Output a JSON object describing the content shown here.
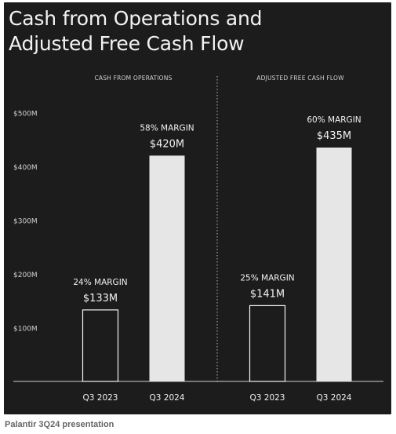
{
  "title_line1": "Cash from Operations and",
  "title_line2": "Adjusted Free Cash Flow",
  "caption": "Palantir 3Q24 presentation",
  "colors": {
    "background": "#1c1c1c",
    "text": "#f2f2f2",
    "bar_fill": "#e6e6e6",
    "bar_outline": "#f2f2f2",
    "axis_text": "#d0d0d0"
  },
  "chart_data": [
    {
      "type": "bar",
      "panel_label": "CASH FROM OPERATIONS",
      "categories": [
        "Q3 2023",
        "Q3 2024"
      ],
      "values": [
        133,
        420
      ],
      "value_labels": [
        "$133M",
        "$420M"
      ],
      "margin_labels": [
        "24% MARGIN",
        "58% MARGIN"
      ],
      "bar_styles": [
        "outline",
        "filled"
      ],
      "unit": "$M",
      "ylim": [
        0,
        500
      ],
      "yticks": [
        100,
        200,
        300,
        400,
        500
      ],
      "ytick_labels": [
        "$100M",
        "$200M",
        "$300M",
        "$400M",
        "$500M"
      ],
      "grid": false
    },
    {
      "type": "bar",
      "panel_label": "ADJUSTED FREE CASH FLOW",
      "categories": [
        "Q3 2023",
        "Q3 2024"
      ],
      "values": [
        141,
        435
      ],
      "value_labels": [
        "$141M",
        "$435M"
      ],
      "margin_labels": [
        "25% MARGIN",
        "60% MARGIN"
      ],
      "bar_styles": [
        "outline",
        "filled"
      ],
      "unit": "$M",
      "ylim": [
        0,
        500
      ],
      "grid": false
    }
  ]
}
